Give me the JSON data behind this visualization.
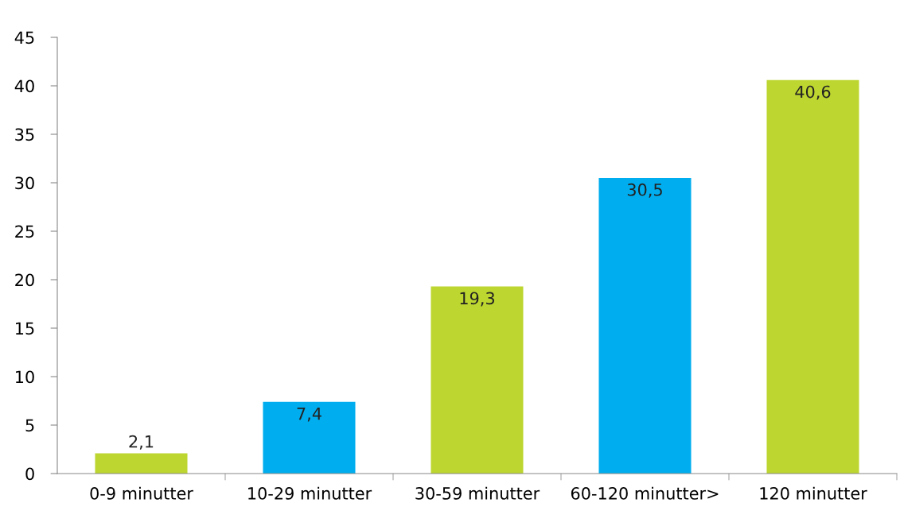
{
  "chart_data": {
    "type": "bar",
    "categories": [
      "0-9 minutter",
      "10-29 minutter",
      "30-59 minutter",
      "60-120 minutter>",
      "120 minutter"
    ],
    "values": [
      2.1,
      7.4,
      19.3,
      30.5,
      40.6
    ],
    "colors": [
      "#bed630",
      "#00aeef",
      "#bed630",
      "#00aeef",
      "#bed630"
    ],
    "value_labels": [
      "2,1",
      "7,4",
      "19,3",
      "30,5",
      "40,6"
    ],
    "ylim": [
      0,
      45
    ],
    "yticks": [
      0,
      5,
      10,
      15,
      20,
      25,
      30,
      35,
      40,
      45
    ],
    "grid": false,
    "legend": false
  }
}
